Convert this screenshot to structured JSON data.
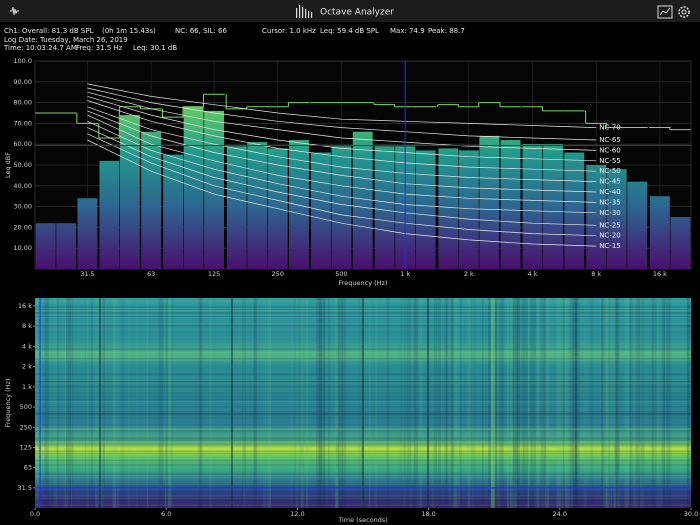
{
  "header": {
    "app_title": "Octave Analyzer",
    "info": {
      "channel": "Ch1:",
      "overall": "Overall: 81.3  dB SPL",
      "elapsed": "(0h  1m 15.43s)",
      "nc": "NC: 66, SIL: 66",
      "cursor": "Cursor: 1.0 kHz",
      "leq": "Leq: 59.4 dB SPL",
      "max": "Max: 74.9",
      "peak": "Peak: 88.7",
      "log_date": "Log Date: Tuesday, March 26, 2019",
      "time": "Time: 10:03:24.7 AM",
      "freq": "Freq: 31.5 Hz",
      "cursor_leq": "Leq: 30.1 dB"
    }
  },
  "chart_data": [
    {
      "type": "bar",
      "xlabel": "Frequency (Hz)",
      "ylabel": "Leq  dBF",
      "log_x": true,
      "grid": true,
      "xlim": [
        17.8,
        22449
      ],
      "xticks": [
        {
          "value": 31.5,
          "label": "31.5"
        },
        63,
        125,
        250,
        500,
        {
          "value": 1000,
          "label": "1 k"
        },
        {
          "value": 2000,
          "label": "2 k"
        },
        {
          "value": 4000,
          "label": "4 k"
        },
        {
          "value": 8000,
          "label": "8 k"
        },
        {
          "value": 16000,
          "label": "16 k"
        }
      ],
      "ylim": [
        0,
        100
      ],
      "yticks": [
        {
          "value": 10,
          "label": "10.00"
        },
        {
          "value": 20,
          "label": "20.00"
        },
        {
          "value": 30,
          "label": "30.00"
        },
        {
          "value": 40,
          "label": "40.00"
        },
        {
          "value": 50,
          "label": "50.00"
        },
        {
          "value": 60,
          "label": "60.00"
        },
        {
          "value": 70,
          "label": "70.00"
        },
        {
          "value": 80,
          "label": "80.00"
        },
        {
          "value": 90,
          "label": "90.00"
        },
        {
          "value": 100,
          "label": "100.0"
        }
      ],
      "x": [
        20,
        25,
        31.5,
        40,
        50,
        63,
        80,
        100,
        125,
        160,
        200,
        250,
        315,
        400,
        500,
        630,
        800,
        1000,
        1250,
        1600,
        2000,
        2500,
        3150,
        4000,
        5000,
        6300,
        8000,
        10000,
        12500,
        16000,
        20000
      ],
      "series": [
        {
          "type": "bar",
          "color": "viridis",
          "values": [
            22,
            22,
            34,
            52,
            74,
            66,
            55,
            78,
            76,
            59,
            61,
            58,
            62,
            56,
            59,
            66,
            59,
            59,
            57,
            58,
            57,
            64,
            62,
            60,
            60,
            56,
            50,
            48,
            42,
            35,
            25
          ]
        },
        {
          "type": "step",
          "color": "#7fd36a",
          "values": [
            75,
            75,
            70,
            63,
            78,
            77,
            73,
            78,
            84,
            77,
            78,
            78,
            80,
            80,
            80,
            80,
            79,
            78,
            78,
            79,
            78,
            80,
            78,
            78,
            76,
            76,
            70,
            68,
            68,
            68,
            67
          ]
        }
      ],
      "curve_x": [
        31.5,
        63,
        125,
        250,
        500,
        1000,
        2000,
        4000,
        8000
      ],
      "curves": [
        {
          "name": "NC-70",
          "values": [
            89,
            83,
            79,
            75,
            72,
            71,
            70,
            69,
            68
          ]
        },
        {
          "name": "NC-65",
          "values": [
            87,
            80,
            75,
            71,
            68,
            66,
            64,
            63,
            62
          ]
        },
        {
          "name": "NC-60",
          "values": [
            85,
            77,
            71,
            67,
            63,
            61,
            59,
            58,
            57
          ]
        },
        {
          "name": "NC-55",
          "values": [
            83,
            74,
            67,
            62,
            58,
            56,
            54,
            53,
            52
          ]
        },
        {
          "name": "NC-50",
          "values": [
            81,
            71,
            64,
            58,
            54,
            51,
            49,
            48,
            47
          ]
        },
        {
          "name": "NC-45",
          "values": [
            78,
            67,
            60,
            54,
            49,
            46,
            44,
            43,
            42
          ]
        },
        {
          "name": "NC-40",
          "values": [
            76,
            64,
            56,
            50,
            45,
            41,
            39,
            38,
            37
          ]
        },
        {
          "name": "NC-35",
          "values": [
            74,
            60,
            52,
            45,
            40,
            36,
            34,
            33,
            32
          ]
        },
        {
          "name": "NC-30",
          "values": [
            71,
            57,
            48,
            41,
            35,
            31,
            29,
            28,
            27
          ]
        },
        {
          "name": "NC-25",
          "values": [
            68,
            54,
            44,
            37,
            31,
            27,
            24,
            22,
            21
          ]
        },
        {
          "name": "NC-20",
          "values": [
            65,
            51,
            40,
            33,
            26,
            22,
            19,
            17,
            16
          ]
        },
        {
          "name": "NC-15",
          "values": [
            62,
            47,
            36,
            29,
            22,
            17,
            14,
            12,
            11
          ]
        }
      ],
      "curve_color": "#e8e8e8",
      "cursor": {
        "x": 1000,
        "y": 59.4,
        "color": "#1a2cff"
      }
    },
    {
      "type": "spectrogram",
      "xlabel": "Time (seconds)",
      "ylabel": "Frequency (Hz)",
      "log_y": true,
      "xlim": [
        0,
        30
      ],
      "xticks": [
        {
          "value": 0,
          "label": "0.0"
        },
        {
          "value": 6,
          "label": "6.0"
        },
        {
          "value": 12,
          "label": "12.0"
        },
        {
          "value": 18,
          "label": "18.0"
        },
        {
          "value": 24,
          "label": "24.0"
        },
        {
          "value": 30,
          "label": "30.0"
        }
      ],
      "ylim": [
        15.8,
        20900
      ],
      "yticks": [
        {
          "value": 31.5,
          "label": "31.5"
        },
        63,
        125,
        250,
        500,
        {
          "value": 1000,
          "label": "1 k"
        },
        {
          "value": 2000,
          "label": "2 k"
        },
        {
          "value": 4000,
          "label": "4 k"
        },
        {
          "value": 8000,
          "label": "8 k"
        },
        {
          "value": 16000,
          "label": "16 k"
        }
      ],
      "cursor": {
        "x": 0.23,
        "y": 31.5,
        "color": "#1a2cff"
      }
    }
  ]
}
